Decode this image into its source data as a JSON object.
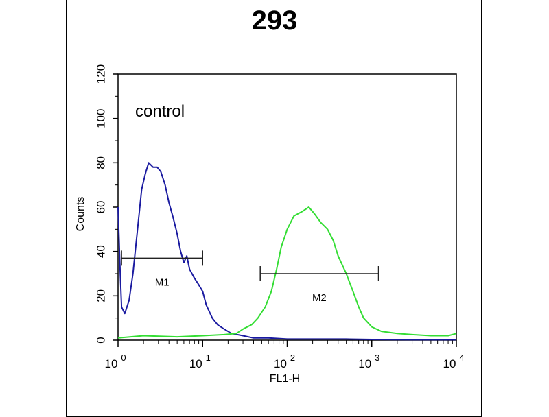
{
  "chart_data": {
    "type": "line",
    "title": "293",
    "xlabel": "FL1-H",
    "ylabel": "Counts",
    "x_scale": "log",
    "xlim": [
      1,
      10000
    ],
    "ylim": [
      0,
      120
    ],
    "y_ticks": [
      "0",
      "20",
      "40",
      "60",
      "80",
      "100",
      "120"
    ],
    "x_ticks": [
      {
        "base": "10",
        "exp": "0",
        "value": 1
      },
      {
        "base": "10",
        "exp": "1",
        "value": 10
      },
      {
        "base": "10",
        "exp": "2",
        "value": 100
      },
      {
        "base": "10",
        "exp": "3",
        "value": 1000
      },
      {
        "base": "10",
        "exp": "4",
        "value": 10000
      }
    ],
    "annotations": [
      "control"
    ],
    "series": [
      {
        "color": "#1a1aa0",
        "points": [
          [
            1.0,
            60
          ],
          [
            1.05,
            35
          ],
          [
            1.1,
            15
          ],
          [
            1.2,
            12
          ],
          [
            1.35,
            18
          ],
          [
            1.5,
            30
          ],
          [
            1.7,
            50
          ],
          [
            1.9,
            68
          ],
          [
            2.1,
            75
          ],
          [
            2.3,
            80
          ],
          [
            2.6,
            78
          ],
          [
            2.9,
            78
          ],
          [
            3.2,
            76
          ],
          [
            3.6,
            70
          ],
          [
            4.0,
            62
          ],
          [
            4.5,
            55
          ],
          [
            5.0,
            48
          ],
          [
            5.5,
            40
          ],
          [
            6.0,
            35
          ],
          [
            6.5,
            38
          ],
          [
            7.0,
            32
          ],
          [
            8.0,
            28
          ],
          [
            9.0,
            25
          ],
          [
            10,
            22
          ],
          [
            11,
            16
          ],
          [
            13,
            10
          ],
          [
            15,
            7
          ],
          [
            18,
            5
          ],
          [
            22,
            3
          ],
          [
            30,
            2
          ],
          [
            40,
            1
          ],
          [
            60,
            1
          ],
          [
            100,
            0.5
          ],
          [
            200,
            0.5
          ],
          [
            500,
            0.5
          ],
          [
            1000,
            0.3
          ],
          [
            3000,
            0.2
          ],
          [
            10000,
            0.2
          ]
        ]
      },
      {
        "color": "#33dd33",
        "points": [
          [
            1.0,
            1
          ],
          [
            2,
            2
          ],
          [
            5,
            1.5
          ],
          [
            10,
            2
          ],
          [
            18,
            2.5
          ],
          [
            25,
            3
          ],
          [
            30,
            5
          ],
          [
            38,
            7
          ],
          [
            45,
            10
          ],
          [
            55,
            15
          ],
          [
            65,
            22
          ],
          [
            75,
            32
          ],
          [
            85,
            42
          ],
          [
            100,
            50
          ],
          [
            120,
            56
          ],
          [
            150,
            58
          ],
          [
            180,
            60
          ],
          [
            210,
            57
          ],
          [
            250,
            53
          ],
          [
            300,
            50
          ],
          [
            350,
            45
          ],
          [
            400,
            38
          ],
          [
            500,
            30
          ],
          [
            600,
            22
          ],
          [
            700,
            15
          ],
          [
            800,
            10
          ],
          [
            1000,
            6
          ],
          [
            1300,
            4
          ],
          [
            2000,
            3
          ],
          [
            3000,
            2.5
          ],
          [
            5000,
            2
          ],
          [
            8000,
            2
          ],
          [
            10000,
            3
          ]
        ]
      }
    ],
    "gates": [
      {
        "label": "M1",
        "x_start": 1.1,
        "x_end": 10,
        "y": 37
      },
      {
        "label": "M2",
        "x_start": 48,
        "x_end": 1200,
        "y": 30
      }
    ]
  }
}
